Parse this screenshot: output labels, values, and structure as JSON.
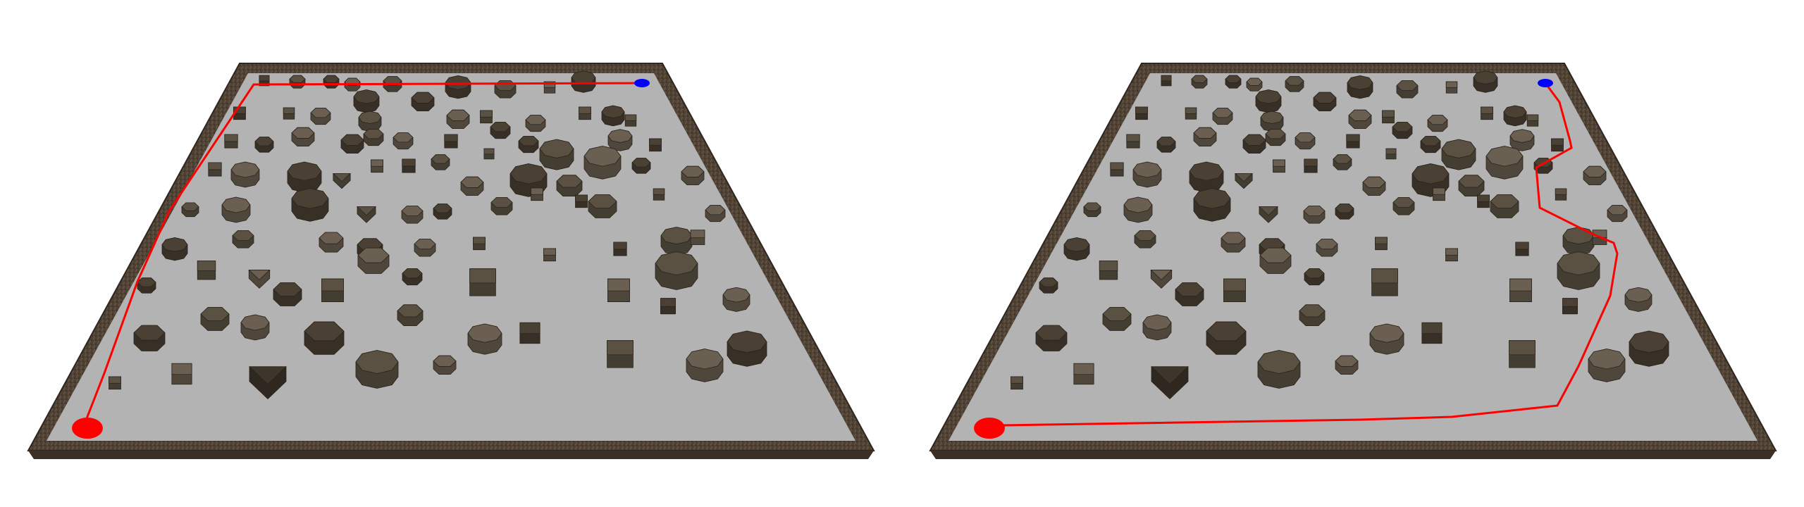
{
  "scene": {
    "description_hidden": "",
    "colors": {
      "background": "#ffffff",
      "floor": "#b3b3b3",
      "wall_top": "#5a4c3e",
      "wall_side": "#3f352b",
      "obstacle_shades": [
        "#4a4034",
        "#5b5143",
        "#6a5f50",
        "#3e352b",
        "#57604a",
        "#766a5a",
        "#4e4338"
      ],
      "path": "#ff0000",
      "start_marker": "#ff0000",
      "goal_marker": "#0000ff"
    },
    "panels": [
      {
        "name": "left-panel",
        "path_label": "path-left"
      },
      {
        "name": "right-panel",
        "path_label": "path-right"
      }
    ]
  }
}
